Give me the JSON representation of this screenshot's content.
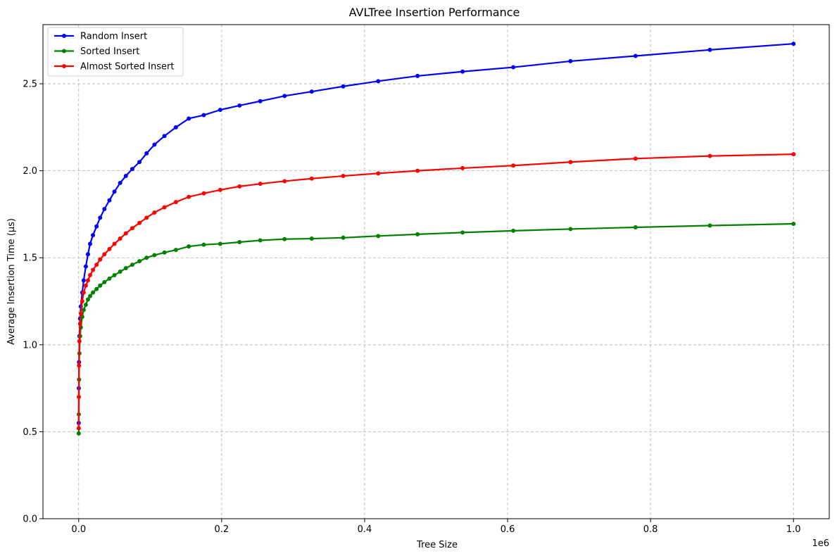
{
  "chart_data": {
    "type": "line",
    "title": "AVLTree Insertion Performance",
    "xlabel": "Tree Size",
    "ylabel": "Average Insertion Time (µs)",
    "x_offset_text": "1e6",
    "xlim": [
      -0.05,
      1.05
    ],
    "ylim": [
      0.0,
      2.84
    ],
    "x_ticks": [
      0.0,
      0.2,
      0.4,
      0.6,
      0.8,
      1.0
    ],
    "x_tick_labels": [
      "0.0",
      "0.2",
      "0.4",
      "0.6",
      "0.8",
      "1.0"
    ],
    "y_ticks": [
      0.0,
      0.5,
      1.0,
      1.5,
      2.0,
      2.5
    ],
    "y_tick_labels": [
      "0.0",
      "0.5",
      "1.0",
      "1.5",
      "2.0",
      "2.5"
    ],
    "grid": true,
    "legend_position": "top-left",
    "x": [
      0.0001,
      0.0002,
      0.0005,
      0.001,
      0.002,
      0.003,
      0.005,
      0.007,
      0.01,
      0.013,
      0.016,
      0.02,
      0.025,
      0.03,
      0.036,
      0.043,
      0.05,
      0.058,
      0.066,
      0.075,
      0.085,
      0.095,
      0.106,
      0.12,
      0.136,
      0.154,
      0.175,
      0.198,
      0.225,
      0.254,
      0.288,
      0.326,
      0.37,
      0.419,
      0.474,
      0.537,
      0.608,
      0.688,
      0.779,
      0.883,
      1.0
    ],
    "series": [
      {
        "name": "Random Insert",
        "color": "#0000ff",
        "values": [
          0.55,
          0.75,
          0.9,
          1.05,
          1.15,
          1.22,
          1.3,
          1.37,
          1.45,
          1.52,
          1.58,
          1.63,
          1.68,
          1.73,
          1.78,
          1.83,
          1.88,
          1.93,
          1.97,
          2.01,
          2.05,
          2.1,
          2.15,
          2.2,
          2.25,
          2.3,
          2.32,
          2.35,
          2.375,
          2.4,
          2.43,
          2.455,
          2.485,
          2.515,
          2.545,
          2.57,
          2.595,
          2.63,
          2.66,
          2.695,
          2.73
        ]
      },
      {
        "name": "Sorted Insert",
        "color": "#008000",
        "values": [
          0.49,
          0.6,
          0.8,
          0.95,
          1.05,
          1.1,
          1.16,
          1.2,
          1.23,
          1.26,
          1.28,
          1.3,
          1.32,
          1.34,
          1.36,
          1.38,
          1.4,
          1.42,
          1.44,
          1.46,
          1.48,
          1.5,
          1.515,
          1.53,
          1.545,
          1.565,
          1.575,
          1.58,
          1.59,
          1.6,
          1.607,
          1.61,
          1.615,
          1.625,
          1.635,
          1.645,
          1.655,
          1.665,
          1.675,
          1.685,
          1.695
        ]
      },
      {
        "name": "Almost Sorted Insert",
        "color": "#ff0000",
        "values": [
          0.52,
          0.7,
          0.88,
          1.02,
          1.12,
          1.18,
          1.25,
          1.3,
          1.34,
          1.37,
          1.4,
          1.43,
          1.46,
          1.49,
          1.52,
          1.55,
          1.58,
          1.61,
          1.64,
          1.67,
          1.7,
          1.73,
          1.76,
          1.79,
          1.82,
          1.85,
          1.87,
          1.89,
          1.91,
          1.925,
          1.94,
          1.955,
          1.97,
          1.985,
          2.0,
          2.015,
          2.03,
          2.05,
          2.07,
          2.085,
          2.095
        ]
      }
    ]
  }
}
